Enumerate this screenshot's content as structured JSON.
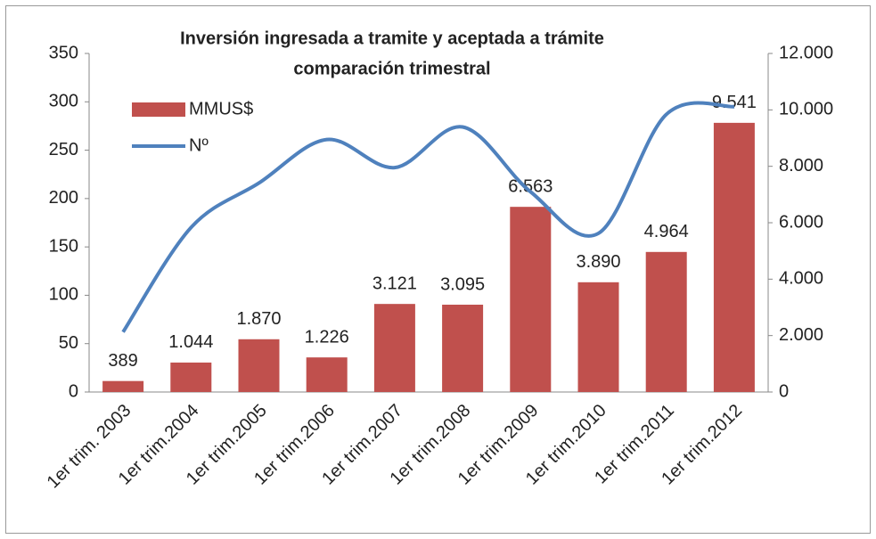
{
  "chart_data": {
    "type": "bar_line",
    "title": "Inversión ingresada a tramite y aceptada a trámite",
    "subtitle": "comparación trimestral",
    "categories": [
      "1er trim. 2003",
      "1er trim.2004",
      "1er trim.2005",
      "1er trim.2006",
      "1er trim.2007",
      "1er trim.2008",
      "1er trim.2009",
      "1er trim.2010",
      "1er trim.2011",
      "1er trim.2012"
    ],
    "series": [
      {
        "name": "MMUS$",
        "type": "bar",
        "axis": "y2",
        "color": "#c0504d",
        "values": [
          389,
          1044,
          1870,
          1226,
          3121,
          3095,
          6563,
          3890,
          4964,
          9541
        ],
        "value_labels": [
          "389",
          "1.044",
          "1.870",
          "1.226",
          "3.121",
          "3.095",
          "6.563",
          "3.890",
          "4.964",
          "9.541"
        ]
      },
      {
        "name": "Nº",
        "type": "line",
        "axis": "y",
        "color": "#4f81bd",
        "values": [
          62,
          170,
          216,
          261,
          232,
          274,
          207,
          164,
          287,
          295
        ]
      }
    ],
    "ylim": [
      0,
      350
    ],
    "yticks": [
      0,
      50,
      100,
      150,
      200,
      250,
      300,
      350
    ],
    "y2lim": [
      0,
      12000
    ],
    "y2ticks": [
      0,
      {
        "value": 2000,
        "label": "2.000"
      },
      {
        "value": 4000,
        "label": "4.000"
      },
      {
        "value": 6000,
        "label": "6.000"
      },
      {
        "value": 8000,
        "label": "8.000"
      },
      {
        "value": 10000,
        "label": "10.000"
      },
      {
        "value": 12000,
        "label": "12.000"
      }
    ],
    "legend": "top-left",
    "grid": false
  }
}
